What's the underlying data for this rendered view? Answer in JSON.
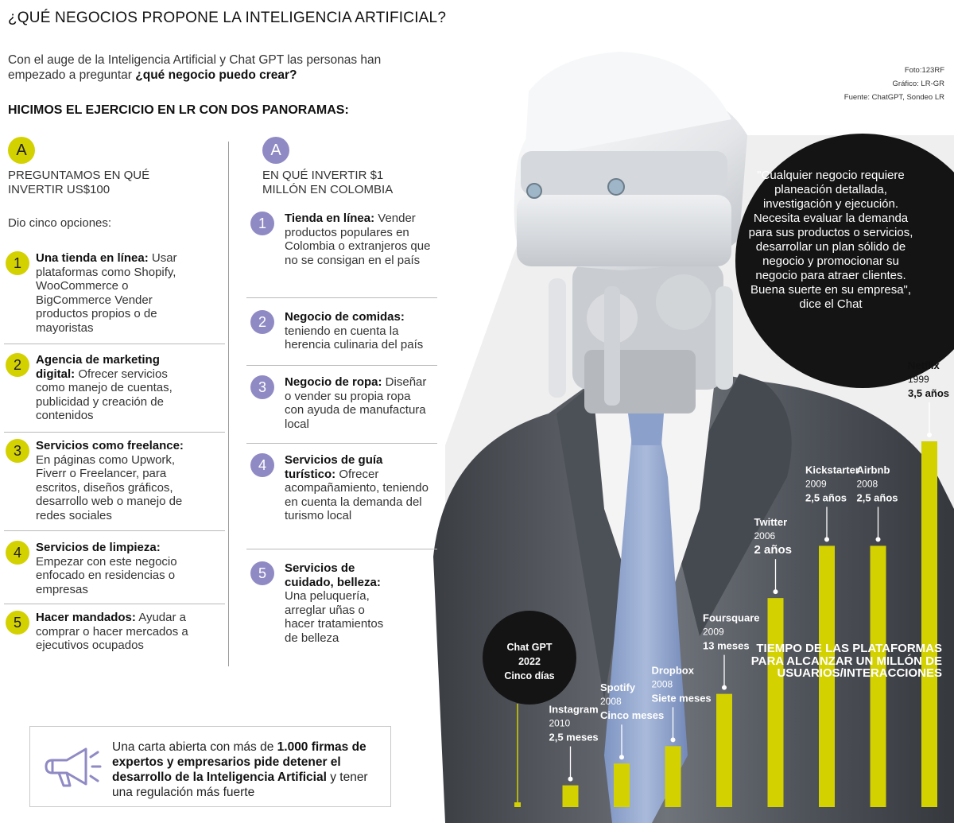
{
  "title": "¿QUÉ NEGOCIOS PROPONE LA INTELIGENCIA ARTIFICIAL?",
  "intro": {
    "text": "Con el auge de la Inteligencia Artificial y Chat GPT las personas han empezado a preguntar ",
    "bold": "¿qué negocio puedo crear?"
  },
  "credits": [
    "Foto:123RF",
    "Gráfico: LR-GR",
    "Fuente: ChatGPT, Sondeo LR"
  ],
  "subtitle": "HICIMOS EL EJERCICIO EN LR CON DOS PANORAMAS:",
  "colors": {
    "yellow": "#d4d100",
    "purple": "#8f8ac4",
    "dark": "#141414"
  },
  "left_column": {
    "badge": "A",
    "heading": "PREGUNTAMOS EN QUÉ INVERTIR US$100",
    "lead": "Dio cinco opciones:",
    "items": [
      {
        "num": "1",
        "bold": "Una tienda en línea:",
        "text": " Usar plataformas como Shopify, WooCommerce o BigCommerce Vender productos propios o de mayoristas"
      },
      {
        "num": "2",
        "bold": "Agencia de marketing digital:",
        "text": " Ofrecer servicios como manejo de cuentas, publicidad y creación de contenidos"
      },
      {
        "num": "3",
        "bold": "Servicios como freelance:",
        "text": " En páginas como Upwork, Fiverr o Freelancer, para escritos, diseños gráficos, desarrollo web o manejo de redes sociales"
      },
      {
        "num": "4",
        "bold": "Servicios de limpieza:",
        "text": " Empezar con este negocio enfocado en residencias o empresas"
      },
      {
        "num": "5",
        "bold": "Hacer mandados:",
        "text": " Ayudar a comprar o hacer mercados a ejecutivos ocupados"
      }
    ]
  },
  "right_column": {
    "badge": "A",
    "heading": "EN QUÉ INVERTIR $1 MILLÓN EN COLOMBIA",
    "items": [
      {
        "num": "1",
        "bold": "Tienda en línea:",
        "text": " Vender productos populares en Colombia o extranjeros que no se consigan en el país"
      },
      {
        "num": "2",
        "bold": "Negocio de comidas:",
        "text": " teniendo en cuenta la herencia culinaria del país"
      },
      {
        "num": "3",
        "bold": "Negocio de ropa:",
        "text": " Diseñar o vender su propia ropa con ayuda de manufactura local"
      },
      {
        "num": "4",
        "bold": "Servicios de guía turístico:",
        "text": " Ofrecer acompañamiento, teniendo en cuenta la demanda del turismo local"
      },
      {
        "num": "5",
        "bold": "Servicios de cuidado, belleza:",
        "text": " Una peluquería, arreglar uñas o hacer tratamientos de belleza"
      }
    ]
  },
  "quote": "\"Cualquier negocio requiere planeación detallada, investigación y ejecución. Necesita evaluar la demanda para sus productos o servicios, desarrollar un plan sólido de negocio y promocionar su negocio para atraer clientes. Buena suerte en su empresa\", dice el Chat",
  "bottom_note": {
    "pre": "Una carta abierta con más de ",
    "bold": "1.000 firmas de expertos y empresarios pide detener el desarrollo de la Inteligencia Artificial",
    "post": " y tener una regulación más fuerte",
    "icon": "megaphone-icon"
  },
  "chart_data": {
    "type": "bar",
    "title": "TIEMPO DE LAS PLATAFORMAS PARA ALCANZAR UN MILLÓN DE USUARIOS/INTERACCIONES",
    "unit": "months",
    "bars": [
      {
        "name": "Chat GPT",
        "year": "2022",
        "label": "Cinco días",
        "months": 0.17
      },
      {
        "name": "Instagram",
        "year": "2010",
        "label": "2,5 meses",
        "months": 2.5
      },
      {
        "name": "Spotify",
        "year": "2008",
        "label": "Cinco meses",
        "months": 5
      },
      {
        "name": "Dropbox",
        "year": "2008",
        "label": "Siete meses",
        "months": 7
      },
      {
        "name": "Foursquare",
        "year": "2009",
        "label": "13 meses",
        "months": 13
      },
      {
        "name": "Twitter",
        "year": "2006",
        "label": "2 años",
        "months": 24
      },
      {
        "name": "Kickstarter",
        "year": "2009",
        "label": "2,5 años",
        "months": 30
      },
      {
        "name": "Airbnb",
        "year": "2008",
        "label": "2,5 años",
        "months": 30
      },
      {
        "name": "Netflix",
        "year": "1999",
        "label": "3,5 años",
        "months": 42
      }
    ]
  }
}
